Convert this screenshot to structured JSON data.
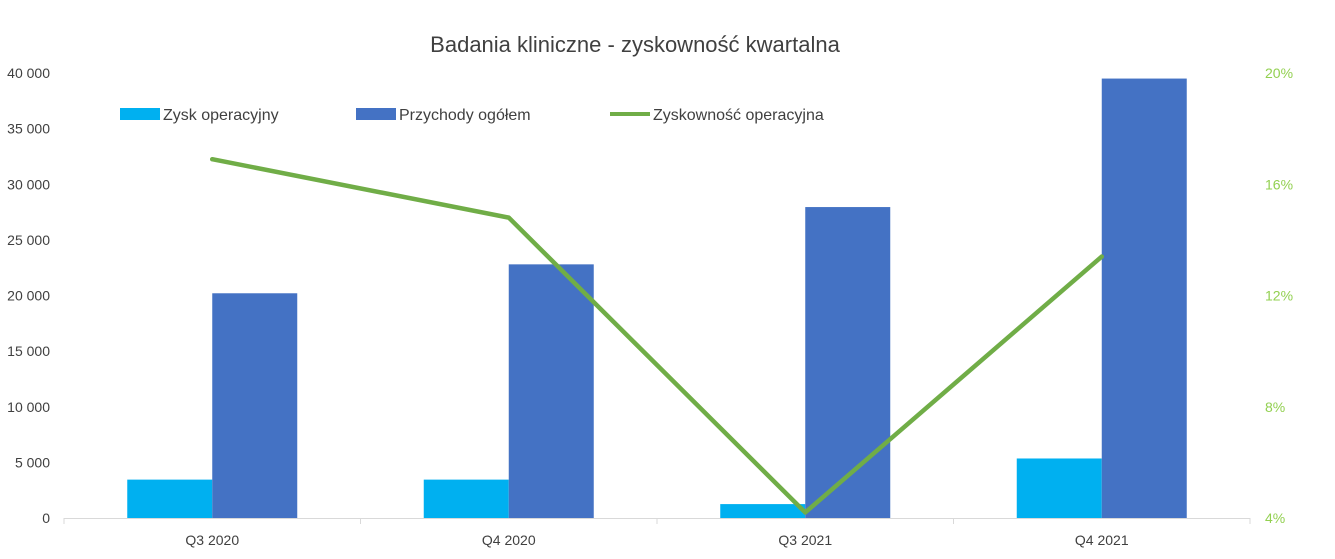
{
  "chart_data": {
    "type": "bar",
    "title": "Badania kliniczne - zyskowność kwartalna",
    "categories": [
      "Q3 2020",
      "Q4 2020",
      "Q3 2021",
      "Q4 2021"
    ],
    "series": [
      {
        "name": "Zysk operacyjny",
        "kind": "bar",
        "axis": "left",
        "color": "#00b0f0",
        "values": [
          3450,
          3450,
          1250,
          5350
        ]
      },
      {
        "name": "Przychody ogółem",
        "kind": "bar",
        "axis": "left",
        "color": "#4472c4",
        "values": [
          20200,
          22800,
          27950,
          39500
        ]
      },
      {
        "name": "Zyskowność operacyjna",
        "kind": "line",
        "axis": "right",
        "color": "#70ad47",
        "values": [
          0.169,
          0.148,
          0.042,
          0.134
        ]
      }
    ],
    "y_left": {
      "min": 0,
      "max": 40000,
      "step": 5000,
      "ticks": [
        "0",
        "5 000",
        "10 000",
        "15 000",
        "20 000",
        "25 000",
        "30 000",
        "35 000",
        "40 000"
      ]
    },
    "y_right": {
      "min": 0.04,
      "max": 0.2,
      "ticks": [
        "4%",
        "8%",
        "12%",
        "16%",
        "20%"
      ],
      "tick_values": [
        0.04,
        0.08,
        0.12,
        0.16,
        0.2
      ],
      "color": "#92d050"
    },
    "legend_position": "top-left",
    "grid": false,
    "axis_line_color": "#d9d9d9"
  }
}
